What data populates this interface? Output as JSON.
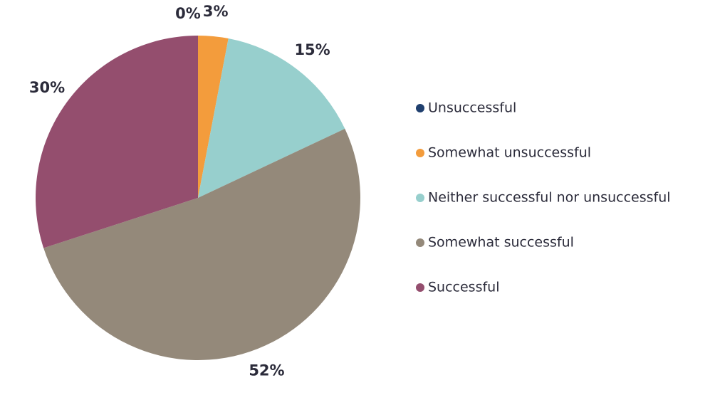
{
  "chart_data": {
    "type": "pie",
    "start_angle_deg": 0,
    "direction": "clockwise",
    "legend_position": "right",
    "slices": [
      {
        "label": "Unsuccessful",
        "value": 0,
        "display": "0%",
        "color": "#1f3f6e"
      },
      {
        "label": "Somewhat unsuccessful",
        "value": 3,
        "display": "3%",
        "color": "#f39c3c"
      },
      {
        "label": "Neither successful nor unsuccessful",
        "value": 15,
        "display": "15%",
        "color": "#97cfcd"
      },
      {
        "label": "Somewhat successful",
        "value": 52,
        "display": "52%",
        "color": "#94897a"
      },
      {
        "label": "Successful",
        "value": 30,
        "display": "30%",
        "color": "#944e6e"
      }
    ]
  }
}
